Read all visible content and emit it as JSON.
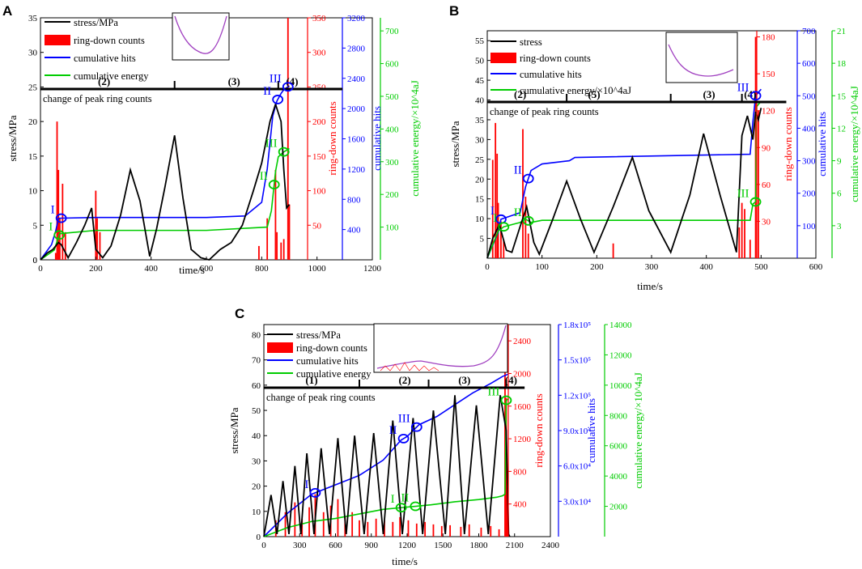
{
  "colors": {
    "stress": "#000000",
    "ring": "#ff0000",
    "hits": "#0000ff",
    "energy": "#00cc00",
    "inset": "#a040c0"
  },
  "chart_data": [
    {
      "panel": "A",
      "type": "line",
      "title": "",
      "xlabel": "time/s",
      "x_ticks": [
        "0",
        "200",
        "400",
        "600",
        "800",
        "1000",
        "1200"
      ],
      "xlim": [
        0,
        1200
      ],
      "axes": [
        {
          "label": "stress/MPa",
          "ticks": [
            "0",
            "5",
            "10",
            "15",
            "20",
            "25",
            "30",
            "35"
          ],
          "lim": [
            0,
            35
          ]
        },
        {
          "label": "ring-down counts",
          "ticks": [
            "50",
            "100",
            "150",
            "200",
            "250",
            "300",
            "350"
          ],
          "lim": [
            0,
            350
          ]
        },
        {
          "label": "cumulative hits",
          "ticks": [
            "400",
            "800",
            "1200",
            "1600",
            "2000",
            "2400",
            "2800",
            "3200"
          ],
          "lim": [
            0,
            3200
          ]
        },
        {
          "label": "cumulative energy/×10^4aJ",
          "ticks": [
            "100",
            "200",
            "300",
            "400",
            "500",
            "600",
            "700"
          ],
          "lim": [
            0,
            740
          ]
        }
      ],
      "legend": [
        "stress/MPa",
        "ring-down counts",
        "cumulative hits",
        "cumulative energy"
      ],
      "stage_bar": {
        "level": 24.7,
        "labels": [
          "(2)",
          "(3)",
          "(4)"
        ],
        "label_x": [
          230,
          700,
          910
        ],
        "dividers": [
          485,
          860
        ],
        "note": "change of peak ring counts"
      },
      "stress": {
        "x": [
          0,
          25,
          45,
          65,
          75,
          100,
          130,
          160,
          185,
          200,
          225,
          255,
          290,
          325,
          360,
          395,
          420,
          450,
          485,
          515,
          545,
          580,
          610,
          650,
          690,
          730,
          770,
          800,
          830,
          850,
          870,
          880,
          890,
          900
        ],
        "y": [
          0,
          1,
          1.5,
          2.5,
          2.2,
          0.3,
          2.5,
          5,
          7.5,
          1.5,
          0.3,
          2,
          6.5,
          13,
          8.5,
          0.5,
          4.5,
          10.5,
          18,
          9,
          1.5,
          0.3,
          0,
          1.5,
          2.5,
          5,
          10,
          14,
          20,
          22.5,
          20,
          13,
          7.5,
          8
        ]
      },
      "hits": {
        "x": [
          0,
          40,
          55,
          65,
          200,
          600,
          740,
          800,
          820,
          840,
          855,
          870,
          880,
          900
        ],
        "y": [
          0,
          200,
          380,
          550,
          560,
          560,
          580,
          760,
          1200,
          1900,
          2100,
          2200,
          2250,
          2300
        ]
      },
      "energy": {
        "x": [
          0,
          50,
          65,
          70,
          200,
          600,
          820,
          835,
          850,
          860,
          880,
          900
        ],
        "y": [
          0,
          30,
          70,
          80,
          90,
          90,
          100,
          150,
          270,
          315,
          330,
          340
        ]
      },
      "ring_spikes": [
        [
          55,
          10
        ],
        [
          60,
          200
        ],
        [
          65,
          130
        ],
        [
          70,
          60
        ],
        [
          80,
          110
        ],
        [
          90,
          40
        ],
        [
          200,
          100
        ],
        [
          205,
          60
        ],
        [
          215,
          40
        ],
        [
          790,
          20
        ],
        [
          820,
          60
        ],
        [
          850,
          130
        ],
        [
          855,
          40
        ],
        [
          870,
          25
        ],
        [
          880,
          30
        ],
        [
          895,
          350
        ],
        [
          900,
          80
        ]
      ],
      "markers": [
        {
          "label": "I",
          "x": 75,
          "series": "hits",
          "color": "hits"
        },
        {
          "label": "II",
          "x": 858,
          "series": "hits",
          "color": "hits"
        },
        {
          "label": "III",
          "x": 895,
          "series": "hits",
          "color": "hits"
        },
        {
          "label": "I",
          "x": 68,
          "series": "energy",
          "color": "energy"
        },
        {
          "label": "II",
          "x": 845,
          "series": "energy",
          "color": "energy"
        },
        {
          "label": "III",
          "x": 880,
          "series": "energy",
          "color": "energy"
        }
      ]
    },
    {
      "panel": "B",
      "type": "line",
      "title": "",
      "xlabel": "time/s",
      "x_ticks": [
        "0",
        "100",
        "200",
        "300",
        "400",
        "500",
        "600"
      ],
      "xlim": [
        0,
        600
      ],
      "axes": [
        {
          "label": "stress/MPa",
          "ticks": [
            "5",
            "10",
            "15",
            "20",
            "25",
            "30",
            "35",
            "40",
            "45",
            "50",
            "55"
          ],
          "lim": [
            0,
            57.5
          ]
        },
        {
          "label": "ring-down counts",
          "ticks": [
            "30",
            "60",
            "90",
            "120",
            "150",
            "180"
          ],
          "lim": [
            0,
            185
          ]
        },
        {
          "label": "cumulative hits",
          "ticks": [
            "100",
            "200",
            "300",
            "400",
            "500",
            "600",
            "700"
          ],
          "lim": [
            0,
            700
          ]
        },
        {
          "label": "cumulative energy/×10^4aJ",
          "ticks": [
            "3",
            "6",
            "9",
            "12",
            "15",
            "18",
            "21"
          ],
          "lim": [
            0,
            21
          ]
        }
      ],
      "legend": [
        "stress",
        "ring-down counts",
        "cumulative hits",
        "cumulative energy/×10^4aJ"
      ],
      "stage_bar": {
        "level": 39.5,
        "labels": [
          "(2)",
          "(5)",
          "(3)",
          "(4)"
        ],
        "label_x": [
          60,
          195,
          405,
          480
        ],
        "dividers": [
          145,
          335,
          465
        ],
        "note": "change of peak ring counts"
      },
      "stress": {
        "x": [
          0,
          10,
          22,
          35,
          45,
          60,
          72,
          85,
          95,
          120,
          145,
          170,
          195,
          230,
          265,
          295,
          335,
          370,
          395,
          425,
          455,
          465,
          475,
          480,
          485,
          490,
          495,
          500
        ],
        "y": [
          0,
          5,
          8.5,
          2,
          1.5,
          8,
          13,
          4,
          1,
          10,
          19.5,
          10,
          1.5,
          13,
          25.5,
          12,
          1.5,
          16,
          31.5,
          16,
          1.5,
          31,
          36,
          33,
          30,
          37,
          35,
          38
        ]
      },
      "hits": {
        "x": [
          0,
          20,
          25,
          60,
          70,
          80,
          100,
          150,
          160,
          480,
          485,
          490,
          500
        ],
        "y": [
          0,
          80,
          120,
          140,
          220,
          270,
          290,
          300,
          310,
          320,
          420,
          500,
          520
        ]
      },
      "energy": {
        "x": [
          0,
          20,
          30,
          60,
          70,
          80,
          100,
          480,
          485,
          490,
          492,
          500
        ],
        "y": [
          0,
          2.5,
          2.9,
          3.3,
          3.6,
          3.3,
          3.5,
          3.5,
          5,
          5.2,
          14,
          14.5
        ]
      },
      "ring_spikes": [
        [
          10,
          80
        ],
        [
          15,
          110
        ],
        [
          18,
          85
        ],
        [
          20,
          45
        ],
        [
          25,
          30
        ],
        [
          30,
          15
        ],
        [
          65,
          105
        ],
        [
          70,
          50
        ],
        [
          75,
          20
        ],
        [
          230,
          12
        ],
        [
          460,
          25
        ],
        [
          465,
          45
        ],
        [
          470,
          40
        ],
        [
          480,
          15
        ],
        [
          490,
          180
        ],
        [
          495,
          120
        ]
      ],
      "markers": [
        {
          "label": "I",
          "x": 25,
          "series": "hits",
          "color": "hits"
        },
        {
          "label": "II",
          "x": 75,
          "series": "hits",
          "color": "hits"
        },
        {
          "label": "III",
          "x": 490,
          "series": "hits",
          "color": "hits"
        },
        {
          "label": "I",
          "x": 30,
          "series": "energy",
          "color": "energy"
        },
        {
          "label": "II",
          "x": 75,
          "series": "energy",
          "color": "energy"
        },
        {
          "label": "III",
          "x": 490,
          "series": "energy",
          "color": "energy"
        }
      ]
    },
    {
      "panel": "C",
      "type": "line",
      "title": "",
      "xlabel": "time/s",
      "x_ticks": [
        "0",
        "300",
        "600",
        "900",
        "1200",
        "1500",
        "1800",
        "2100",
        "2400"
      ],
      "xlim": [
        0,
        2400
      ],
      "axes": [
        {
          "label": "stress/MPa",
          "ticks": [
            "10",
            "20",
            "30",
            "40",
            "50",
            "60",
            "70",
            "80"
          ],
          "lim": [
            0,
            84
          ]
        },
        {
          "label": "ring-down counts",
          "ticks": [
            "400",
            "800",
            "1200",
            "1600",
            "2000",
            "2400"
          ],
          "lim": [
            0,
            2600
          ]
        },
        {
          "label": "cumulative hits",
          "ticks": [
            "3.0x10⁴",
            "6.0x10⁴",
            "9.0x10⁴",
            "1.2x10⁵",
            "1.5x10⁵",
            "1.8x10⁵"
          ],
          "lim": [
            0,
            180000
          ]
        },
        {
          "label": "cumulative energy/×10^4aJ",
          "ticks": [
            "2000",
            "4000",
            "6000",
            "8000",
            "10000",
            "12000",
            "14000"
          ],
          "lim": [
            0,
            14000
          ]
        }
      ],
      "legend": [
        "stress/MPa",
        "ring-down counts",
        "cumulative hits",
        "cumulative energy"
      ],
      "stage_bar": {
        "level": 59,
        "labels": [
          "(1)",
          "(2)",
          "(3)",
          "(4)"
        ],
        "label_x": [
          400,
          1180,
          1680,
          2070
        ],
        "dividers": [
          800,
          1380,
          2030
        ],
        "note": "change of peak ring counts"
      },
      "stress": {
        "x": [
          0,
          60,
          110,
          160,
          210,
          260,
          310,
          360,
          420,
          480,
          550,
          620,
          690,
          760,
          840,
          920,
          1000,
          1080,
          1160,
          1250,
          1330,
          1420,
          1520,
          1600,
          1680,
          1780,
          1880,
          1980,
          2030,
          2050,
          2060
        ],
        "y": [
          0,
          16.5,
          1,
          22,
          1,
          28,
          1,
          33,
          1,
          35,
          1,
          39,
          1,
          40,
          1,
          41,
          1,
          46,
          1,
          47,
          1,
          50,
          1,
          56,
          1,
          52,
          1,
          56,
          42,
          1,
          0
        ]
      },
      "hits": {
        "x": [
          0,
          200,
          400,
          600,
          800,
          1000,
          1150,
          1200,
          1300,
          1450,
          1600,
          1750,
          1900,
          2000,
          2050
        ],
        "y": [
          0,
          20000,
          36000,
          44000,
          52000,
          65000,
          82000,
          85000,
          95000,
          102000,
          112000,
          122000,
          130000,
          136000,
          138000
        ]
      },
      "energy": {
        "x": [
          0,
          200,
          400,
          600,
          800,
          1000,
          1200,
          1400,
          1600,
          1800,
          1950,
          2000,
          2020,
          2030,
          2050
        ],
        "y": [
          0,
          600,
          1000,
          1200,
          1500,
          1800,
          1950,
          2100,
          2300,
          2450,
          2600,
          2700,
          2800,
          9000,
          9100
        ]
      },
      "ring_spikes": [
        [
          100,
          200
        ],
        [
          180,
          300
        ],
        [
          260,
          420
        ],
        [
          320,
          220
        ],
        [
          380,
          360
        ],
        [
          430,
          520
        ],
        [
          500,
          300
        ],
        [
          560,
          380
        ],
        [
          620,
          460
        ],
        [
          680,
          250
        ],
        [
          740,
          300
        ],
        [
          800,
          200
        ],
        [
          870,
          180
        ],
        [
          940,
          220
        ],
        [
          1010,
          200
        ],
        [
          1080,
          180
        ],
        [
          1140,
          240
        ],
        [
          1210,
          200
        ],
        [
          1280,
          160
        ],
        [
          1350,
          180
        ],
        [
          1420,
          150
        ],
        [
          1490,
          130
        ],
        [
          1560,
          140
        ],
        [
          1650,
          120
        ],
        [
          1720,
          150
        ],
        [
          1820,
          110
        ],
        [
          1900,
          130
        ],
        [
          1970,
          90
        ],
        [
          2020,
          2500
        ],
        [
          2030,
          1700
        ],
        [
          2040,
          600
        ]
      ],
      "markers": [
        {
          "label": "I",
          "x": 430,
          "series": "hits",
          "color": "hits"
        },
        {
          "label": "II",
          "x": 1170,
          "series": "hits",
          "color": "hits"
        },
        {
          "label": "III",
          "x": 1280,
          "series": "hits",
          "color": "hits"
        },
        {
          "label": "I",
          "x": 1150,
          "series": "energy",
          "color": "energy"
        },
        {
          "label": "II",
          "x": 1270,
          "series": "energy",
          "color": "energy"
        },
        {
          "label": "III",
          "x": 2030,
          "series": "energy",
          "color": "energy"
        }
      ]
    }
  ]
}
